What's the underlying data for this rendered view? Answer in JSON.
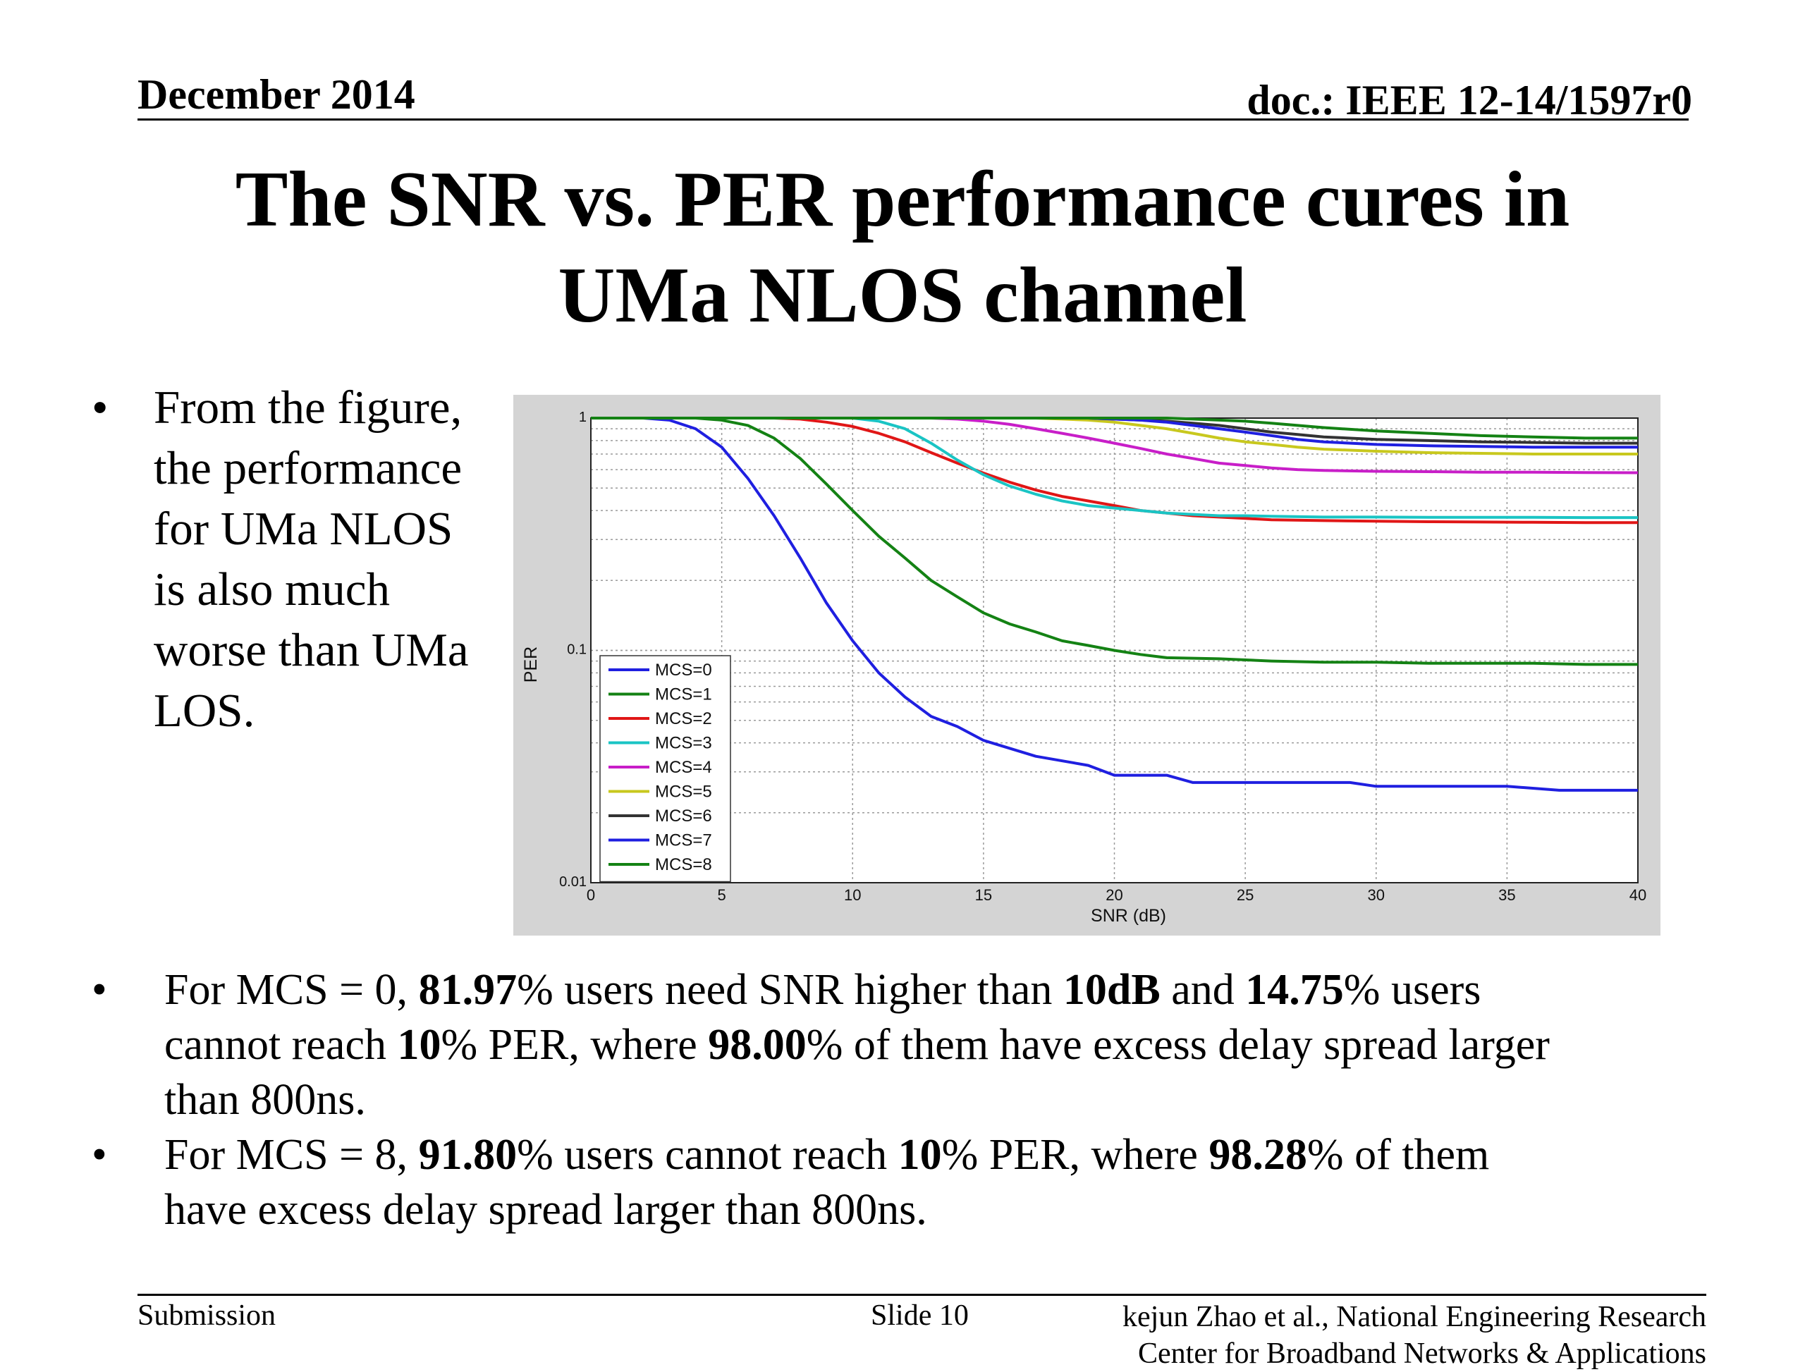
{
  "header": {
    "date": "December 2014",
    "doc": "doc.: IEEE 12-14/1597r0"
  },
  "title": {
    "line1": "The SNR vs. PER performance cures in",
    "line2": "UMa NLOS channel"
  },
  "left_bullet": {
    "lines": [
      "From the figure,",
      "the performance",
      "for UMa NLOS",
      "is also much",
      "worse than UMa",
      "LOS."
    ]
  },
  "bullets": [
    {
      "runs": [
        {
          "t": "For MCS = 0, ",
          "b": false
        },
        {
          "t": "81.97",
          "b": true
        },
        {
          "t": "% users need SNR higher than ",
          "b": false
        },
        {
          "t": "10dB",
          "b": true
        },
        {
          "t": " and ",
          "b": false
        },
        {
          "t": "14.75",
          "b": true
        },
        {
          "t": "% users",
          "b": false
        },
        {
          "br": true
        },
        {
          "t": "cannot reach ",
          "b": false
        },
        {
          "t": "10",
          "b": true
        },
        {
          "t": "% PER, where ",
          "b": false
        },
        {
          "t": "98.00",
          "b": true
        },
        {
          "t": "% of them have excess delay spread larger",
          "b": false
        },
        {
          "br": true
        },
        {
          "t": "than 800ns.",
          "b": false
        }
      ]
    },
    {
      "runs": [
        {
          "t": "For MCS = 8, ",
          "b": false
        },
        {
          "t": "91.80",
          "b": true
        },
        {
          "t": "% users cannot reach ",
          "b": false
        },
        {
          "t": "10",
          "b": true
        },
        {
          "t": "% PER, where ",
          "b": false
        },
        {
          "t": "98.28",
          "b": true
        },
        {
          "t": "% of them",
          "b": false
        },
        {
          "br": true
        },
        {
          "t": "have excess delay spread larger than 800ns.",
          "b": false
        }
      ]
    }
  ],
  "footer": {
    "submission": "Submission",
    "slide": "Slide 10",
    "author_line1": "kejun Zhao et al., National Engineering Research",
    "author_line2": "Center for Broadband Networks & Applications"
  },
  "chart_data": {
    "type": "line",
    "xlabel": "SNR (dB)",
    "ylabel": "PER",
    "xlim": [
      0,
      40
    ],
    "ylim": [
      0.01,
      1
    ],
    "yscale": "log",
    "grid": true,
    "legend_position": "bottom-left",
    "x_ticks": [
      "0",
      "5",
      "10",
      "15",
      "20",
      "25",
      "30",
      "35",
      "40"
    ],
    "y_ticks": [
      {
        "v": 1,
        "label": "1"
      },
      {
        "v": 0.1,
        "label": "0.1"
      },
      {
        "v": 0.01,
        "label": "0.01"
      }
    ],
    "series": [
      {
        "name": "MCS=0",
        "color": "#1f1fe0",
        "x": [
          0,
          1,
          2,
          3,
          4,
          5,
          6,
          7,
          8,
          9,
          10,
          11,
          12,
          13,
          14,
          15,
          17,
          19,
          20,
          22,
          23,
          25,
          27,
          28,
          29,
          30,
          32,
          34,
          35,
          37,
          38,
          39,
          40
        ],
        "y": [
          1,
          1,
          1,
          0.98,
          0.9,
          0.75,
          0.55,
          0.38,
          0.25,
          0.16,
          0.11,
          0.08,
          0.063,
          0.052,
          0.047,
          0.041,
          0.035,
          0.032,
          0.029,
          0.029,
          0.027,
          0.027,
          0.027,
          0.027,
          0.027,
          0.026,
          0.026,
          0.026,
          0.026,
          0.025,
          0.025,
          0.025,
          0.025
        ]
      },
      {
        "name": "MCS=1",
        "color": "#148214",
        "x": [
          0,
          2,
          3,
          4,
          5,
          6,
          7,
          8,
          9,
          10,
          11,
          12,
          13,
          14,
          15,
          16,
          17,
          18,
          19,
          20,
          21,
          22,
          24,
          26,
          28,
          30,
          32,
          34,
          36,
          38,
          40
        ],
        "y": [
          1,
          1,
          1,
          1,
          0.98,
          0.93,
          0.82,
          0.67,
          0.52,
          0.4,
          0.31,
          0.25,
          0.2,
          0.17,
          0.145,
          0.13,
          0.12,
          0.11,
          0.105,
          0.1,
          0.096,
          0.093,
          0.092,
          0.09,
          0.089,
          0.089,
          0.088,
          0.088,
          0.088,
          0.087,
          0.087
        ]
      },
      {
        "name": "MCS=2",
        "color": "#e01616",
        "x": [
          0,
          6,
          7,
          8,
          9,
          10,
          11,
          12,
          13,
          14,
          15,
          16,
          17,
          18,
          19,
          20,
          21,
          22,
          23,
          24,
          25,
          26,
          28,
          30,
          32,
          34,
          36,
          38,
          40
        ],
        "y": [
          1,
          1,
          1,
          0.99,
          0.96,
          0.92,
          0.86,
          0.79,
          0.71,
          0.64,
          0.58,
          0.53,
          0.49,
          0.46,
          0.44,
          0.42,
          0.4,
          0.39,
          0.38,
          0.375,
          0.37,
          0.365,
          0.362,
          0.36,
          0.358,
          0.357,
          0.356,
          0.355,
          0.355
        ]
      },
      {
        "name": "MCS=3",
        "color": "#1ac4c4",
        "x": [
          0,
          8,
          9,
          10,
          11,
          12,
          13,
          14,
          15,
          16,
          17,
          18,
          19,
          20,
          21,
          22,
          23,
          24,
          25,
          26,
          28,
          30,
          32,
          34,
          36,
          38,
          40
        ],
        "y": [
          1,
          1,
          1,
          1,
          0.97,
          0.9,
          0.78,
          0.66,
          0.57,
          0.51,
          0.47,
          0.44,
          0.42,
          0.41,
          0.4,
          0.39,
          0.385,
          0.38,
          0.38,
          0.378,
          0.375,
          0.375,
          0.374,
          0.374,
          0.374,
          0.373,
          0.373
        ]
      },
      {
        "name": "MCS=4",
        "color": "#c81ec8",
        "x": [
          0,
          12,
          13,
          14,
          15,
          16,
          17,
          18,
          19,
          20,
          21,
          22,
          23,
          24,
          25,
          26,
          27,
          28,
          30,
          32,
          34,
          36,
          38,
          40
        ],
        "y": [
          1,
          1,
          1,
          0.99,
          0.97,
          0.94,
          0.9,
          0.86,
          0.82,
          0.78,
          0.74,
          0.7,
          0.67,
          0.64,
          0.625,
          0.61,
          0.6,
          0.595,
          0.59,
          0.588,
          0.585,
          0.585,
          0.583,
          0.582
        ]
      },
      {
        "name": "MCS=5",
        "color": "#c8c81e",
        "x": [
          0,
          16,
          17,
          18,
          19,
          20,
          21,
          22,
          23,
          24,
          25,
          26,
          27,
          28,
          30,
          32,
          34,
          36,
          38,
          40
        ],
        "y": [
          1,
          1,
          1,
          0.99,
          0.98,
          0.96,
          0.93,
          0.9,
          0.86,
          0.82,
          0.79,
          0.77,
          0.75,
          0.735,
          0.72,
          0.71,
          0.705,
          0.7,
          0.7,
          0.7
        ]
      },
      {
        "name": "MCS=6",
        "color": "#333333",
        "x": [
          0,
          18,
          19,
          20,
          21,
          22,
          23,
          24,
          25,
          26,
          27,
          28,
          30,
          32,
          34,
          36,
          38,
          40
        ],
        "y": [
          1,
          1,
          1,
          0.99,
          0.98,
          0.97,
          0.95,
          0.93,
          0.9,
          0.87,
          0.85,
          0.83,
          0.81,
          0.8,
          0.79,
          0.785,
          0.78,
          0.78
        ]
      },
      {
        "name": "MCS=7",
        "color": "#1f1fe0",
        "x": [
          0,
          18,
          19,
          20,
          21,
          22,
          23,
          24,
          25,
          26,
          27,
          28,
          30,
          32,
          34,
          36,
          38,
          40
        ],
        "y": [
          1,
          1,
          1,
          0.99,
          0.98,
          0.96,
          0.93,
          0.9,
          0.87,
          0.84,
          0.81,
          0.79,
          0.77,
          0.76,
          0.755,
          0.75,
          0.75,
          0.75
        ]
      },
      {
        "name": "MCS=8",
        "color": "#148214",
        "x": [
          0,
          20,
          21,
          22,
          23,
          24,
          25,
          26,
          27,
          28,
          30,
          32,
          34,
          36,
          38,
          40
        ],
        "y": [
          1,
          1,
          1,
          1,
          0.99,
          0.98,
          0.97,
          0.95,
          0.93,
          0.91,
          0.88,
          0.86,
          0.84,
          0.83,
          0.82,
          0.82
        ]
      }
    ]
  }
}
